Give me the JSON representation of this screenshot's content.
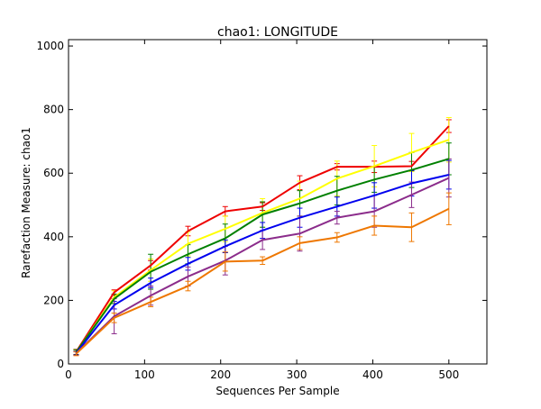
{
  "chart_data": {
    "type": "line",
    "title": "chao1: LONGITUDE",
    "xlabel": "Sequences Per Sample",
    "ylabel": "Rarefaction Measure: chao1",
    "xlim": [
      0,
      550
    ],
    "ylim": [
      0,
      1020
    ],
    "xticks": [
      0,
      100,
      200,
      300,
      400,
      500
    ],
    "yticks": [
      0,
      200,
      400,
      600,
      800,
      1000
    ],
    "grid": false,
    "x": [
      10,
      60,
      108,
      157,
      206,
      255,
      304,
      353,
      402,
      451,
      500
    ],
    "series": [
      {
        "color": "#ee0000",
        "values": [
          38,
          225,
          310,
          418,
          480,
          495,
          570,
          620,
          620,
          622,
          748
        ],
        "errors": [
          8,
          8,
          15,
          15,
          15,
          12,
          22,
          10,
          18,
          15,
          20
        ]
      },
      {
        "color": "#ffff00",
        "values": [
          36,
          210,
          295,
          378,
          425,
          475,
          520,
          583,
          622,
          665,
          705
        ],
        "errors": [
          8,
          20,
          35,
          38,
          40,
          45,
          55,
          55,
          65,
          60,
          70
        ]
      },
      {
        "color": "#008000",
        "values": [
          37,
          205,
          290,
          345,
          395,
          470,
          505,
          545,
          580,
          610,
          645
        ],
        "errors": [
          8,
          15,
          55,
          30,
          45,
          40,
          40,
          45,
          40,
          55,
          50
        ]
      },
      {
        "color": "#0000ee",
        "values": [
          34,
          185,
          255,
          315,
          370,
          420,
          460,
          495,
          530,
          568,
          595
        ],
        "errors": [
          6,
          12,
          15,
          20,
          20,
          25,
          30,
          30,
          40,
          40,
          45
        ]
      },
      {
        "color": "#8b2c8b",
        "values": [
          33,
          150,
          215,
          275,
          325,
          390,
          410,
          460,
          480,
          532,
          585
        ],
        "errors": [
          6,
          55,
          30,
          30,
          45,
          30,
          55,
          20,
          50,
          40,
          60
        ]
      },
      {
        "color": "#ee7700",
        "values": [
          32,
          145,
          195,
          245,
          322,
          325,
          380,
          398,
          435,
          430,
          488
        ],
        "errors": [
          6,
          15,
          15,
          15,
          30,
          12,
          20,
          15,
          30,
          45,
          50
        ]
      }
    ]
  }
}
